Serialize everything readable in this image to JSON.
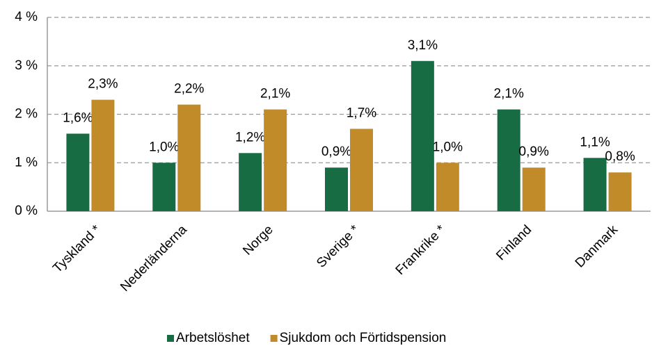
{
  "chart_data": {
    "type": "bar",
    "categories": [
      "Tyskland *",
      "Nederländerna",
      "Norge",
      "Sverige *",
      "Frankrike *",
      "Finland",
      "Danmark"
    ],
    "series": [
      {
        "name": "Arbetslöshet",
        "color": "#176c43",
        "values": [
          1.6,
          1.0,
          1.2,
          0.9,
          3.1,
          2.1,
          1.1
        ],
        "value_labels": [
          "1,6%",
          "1,0%",
          "1,2%",
          "0,9%",
          "3,1%",
          "2,1%",
          "1,1%"
        ]
      },
      {
        "name": "Sjukdom och Förtidspension",
        "color": "#c18b2a",
        "values": [
          2.3,
          2.2,
          2.1,
          1.7,
          1.0,
          0.9,
          0.8
        ],
        "value_labels": [
          "2,3%",
          "2,2%",
          "2,1%",
          "1,7%",
          "1,0%",
          "0,9%",
          "0,8%"
        ]
      }
    ],
    "ylim": [
      0,
      4
    ],
    "yticks": [
      {
        "value": 0,
        "label": "0 %"
      },
      {
        "value": 1,
        "label": "1 %"
      },
      {
        "value": 2,
        "label": "2 %"
      },
      {
        "value": 3,
        "label": "3 %"
      },
      {
        "value": 4,
        "label": "4 %"
      }
    ],
    "grid": true
  }
}
